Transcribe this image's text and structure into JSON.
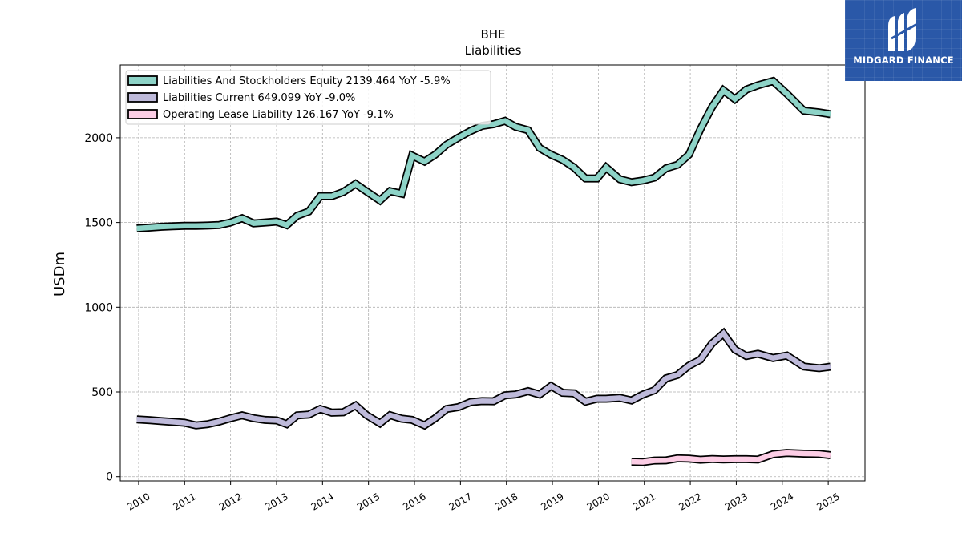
{
  "logo": {
    "text": "MIDGARD FINANCE",
    "icon": "midgard-m-logo-icon",
    "bg": "#2a58a8"
  },
  "chart_data": {
    "type": "line",
    "title": "BHE",
    "subtitle": "Liabilities",
    "ylabel": "USDm",
    "xlabel": "",
    "xlim": [
      2009.6,
      2025.8
    ],
    "ylim": [
      -25,
      2430
    ],
    "yticks": [
      0,
      500,
      1000,
      1500,
      2000
    ],
    "xticks": [
      2010,
      2011,
      2012,
      2013,
      2014,
      2015,
      2016,
      2017,
      2018,
      2019,
      2020,
      2021,
      2022,
      2023,
      2024,
      2025
    ],
    "grid": true,
    "legend_position": "top-left",
    "series": [
      {
        "name": "Liabilities And Stockholders Equity  2139.464 YoY -5.9%",
        "color": "#8dd3c7",
        "points": [
          [
            2009.96,
            1465
          ],
          [
            2010.25,
            1470
          ],
          [
            2010.5,
            1475
          ],
          [
            2010.75,
            1478
          ],
          [
            2011.0,
            1480
          ],
          [
            2011.25,
            1480
          ],
          [
            2011.5,
            1482
          ],
          [
            2011.75,
            1485
          ],
          [
            2012.0,
            1500
          ],
          [
            2012.25,
            1525
          ],
          [
            2012.5,
            1495
          ],
          [
            2012.75,
            1500
          ],
          [
            2013.0,
            1505
          ],
          [
            2013.22,
            1485
          ],
          [
            2013.45,
            1540
          ],
          [
            2013.7,
            1565
          ],
          [
            2013.95,
            1655
          ],
          [
            2014.2,
            1655
          ],
          [
            2014.45,
            1680
          ],
          [
            2014.72,
            1728
          ],
          [
            2014.95,
            1685
          ],
          [
            2015.25,
            1630
          ],
          [
            2015.47,
            1685
          ],
          [
            2015.72,
            1670
          ],
          [
            2015.95,
            1895
          ],
          [
            2016.22,
            1860
          ],
          [
            2016.45,
            1900
          ],
          [
            2016.7,
            1960
          ],
          [
            2016.95,
            2000
          ],
          [
            2017.22,
            2040
          ],
          [
            2017.47,
            2070
          ],
          [
            2017.72,
            2080
          ],
          [
            2017.97,
            2100
          ],
          [
            2018.2,
            2065
          ],
          [
            2018.47,
            2045
          ],
          [
            2018.72,
            1940
          ],
          [
            2018.97,
            1900
          ],
          [
            2019.22,
            1870
          ],
          [
            2019.47,
            1825
          ],
          [
            2019.72,
            1760
          ],
          [
            2019.97,
            1760
          ],
          [
            2020.17,
            1825
          ],
          [
            2020.47,
            1755
          ],
          [
            2020.72,
            1738
          ],
          [
            2020.97,
            1748
          ],
          [
            2021.22,
            1765
          ],
          [
            2021.47,
            1820
          ],
          [
            2021.72,
            1840
          ],
          [
            2021.97,
            1900
          ],
          [
            2022.22,
            2050
          ],
          [
            2022.47,
            2180
          ],
          [
            2022.72,
            2280
          ],
          [
            2022.97,
            2228
          ],
          [
            2023.22,
            2285
          ],
          [
            2023.47,
            2310
          ],
          [
            2023.8,
            2335
          ],
          [
            2024.1,
            2260
          ],
          [
            2024.47,
            2160
          ],
          [
            2024.8,
            2150
          ],
          [
            2025.05,
            2139.464
          ]
        ]
      },
      {
        "name": "Liabilities Current  649.099 YoY -9.0%",
        "color": "#bebada",
        "points": [
          [
            2009.96,
            338
          ],
          [
            2010.25,
            333
          ],
          [
            2010.5,
            328
          ],
          [
            2010.75,
            323
          ],
          [
            2011.0,
            318
          ],
          [
            2011.25,
            303
          ],
          [
            2011.5,
            310
          ],
          [
            2011.75,
            325
          ],
          [
            2012.0,
            345
          ],
          [
            2012.25,
            362
          ],
          [
            2012.5,
            345
          ],
          [
            2012.75,
            335
          ],
          [
            2013.0,
            332
          ],
          [
            2013.22,
            310
          ],
          [
            2013.45,
            362
          ],
          [
            2013.7,
            366
          ],
          [
            2013.95,
            400
          ],
          [
            2014.2,
            378
          ],
          [
            2014.45,
            380
          ],
          [
            2014.72,
            420
          ],
          [
            2014.95,
            365
          ],
          [
            2015.25,
            315
          ],
          [
            2015.47,
            363
          ],
          [
            2015.72,
            342
          ],
          [
            2015.95,
            335
          ],
          [
            2016.22,
            303
          ],
          [
            2016.45,
            345
          ],
          [
            2016.7,
            400
          ],
          [
            2016.95,
            410
          ],
          [
            2017.22,
            440
          ],
          [
            2017.47,
            446
          ],
          [
            2017.72,
            445
          ],
          [
            2017.97,
            480
          ],
          [
            2018.2,
            485
          ],
          [
            2018.47,
            505
          ],
          [
            2018.72,
            485
          ],
          [
            2018.97,
            535
          ],
          [
            2019.22,
            495
          ],
          [
            2019.47,
            492
          ],
          [
            2019.72,
            443
          ],
          [
            2019.97,
            460
          ],
          [
            2020.17,
            460
          ],
          [
            2020.47,
            465
          ],
          [
            2020.72,
            450
          ],
          [
            2020.97,
            485
          ],
          [
            2021.22,
            510
          ],
          [
            2021.47,
            580
          ],
          [
            2021.72,
            600
          ],
          [
            2021.97,
            655
          ],
          [
            2022.22,
            690
          ],
          [
            2022.47,
            785
          ],
          [
            2022.72,
            845
          ],
          [
            2022.97,
            750
          ],
          [
            2023.22,
            712
          ],
          [
            2023.47,
            725
          ],
          [
            2023.8,
            700
          ],
          [
            2024.1,
            715
          ],
          [
            2024.47,
            650
          ],
          [
            2024.8,
            640
          ],
          [
            2025.05,
            649.099
          ]
        ]
      },
      {
        "name": "Operating Lease Liability  126.167 YoY -9.1%",
        "color": "#fccde5",
        "points": [
          [
            2020.72,
            88
          ],
          [
            2020.97,
            86
          ],
          [
            2021.22,
            95
          ],
          [
            2021.47,
            96
          ],
          [
            2021.72,
            108
          ],
          [
            2021.97,
            106
          ],
          [
            2022.22,
            100
          ],
          [
            2022.47,
            104
          ],
          [
            2022.72,
            102
          ],
          [
            2022.97,
            103
          ],
          [
            2023.22,
            103
          ],
          [
            2023.47,
            101
          ],
          [
            2023.8,
            132
          ],
          [
            2024.1,
            140
          ],
          [
            2024.47,
            136
          ],
          [
            2024.8,
            134
          ],
          [
            2025.05,
            126.167
          ]
        ]
      }
    ]
  }
}
